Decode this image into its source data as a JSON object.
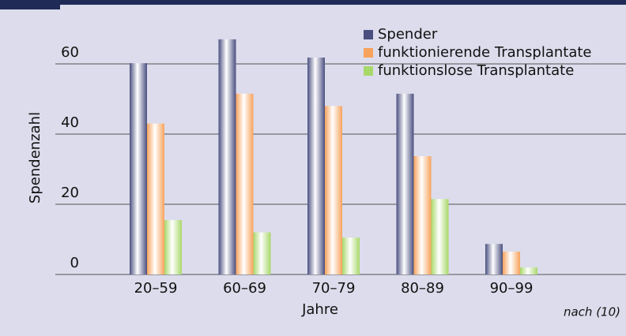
{
  "chart_data": {
    "type": "bar",
    "x_label": "Jahre",
    "y_label": "Spendenzahl",
    "note": "nach (10)",
    "categories": [
      "20–59",
      "60–69",
      "70–79",
      "80–89",
      "90–99"
    ],
    "series": [
      {
        "name": "Spender",
        "color": "#4a4f80",
        "values": [
          60.2,
          67,
          61.8,
          51.5,
          8.7
        ]
      },
      {
        "name": "funktionierende Transplantate",
        "color": "#f7a35c",
        "values": [
          43,
          51.5,
          48,
          33.7,
          6.5
        ]
      },
      {
        "name": "funktionslose Transplantate",
        "color": "#a8d86a",
        "values": [
          15.5,
          12,
          10.5,
          21.5,
          2
        ]
      }
    ],
    "ylim": [
      0,
      70
    ],
    "yticks": [
      0,
      20,
      40,
      60
    ],
    "grid": true
  }
}
